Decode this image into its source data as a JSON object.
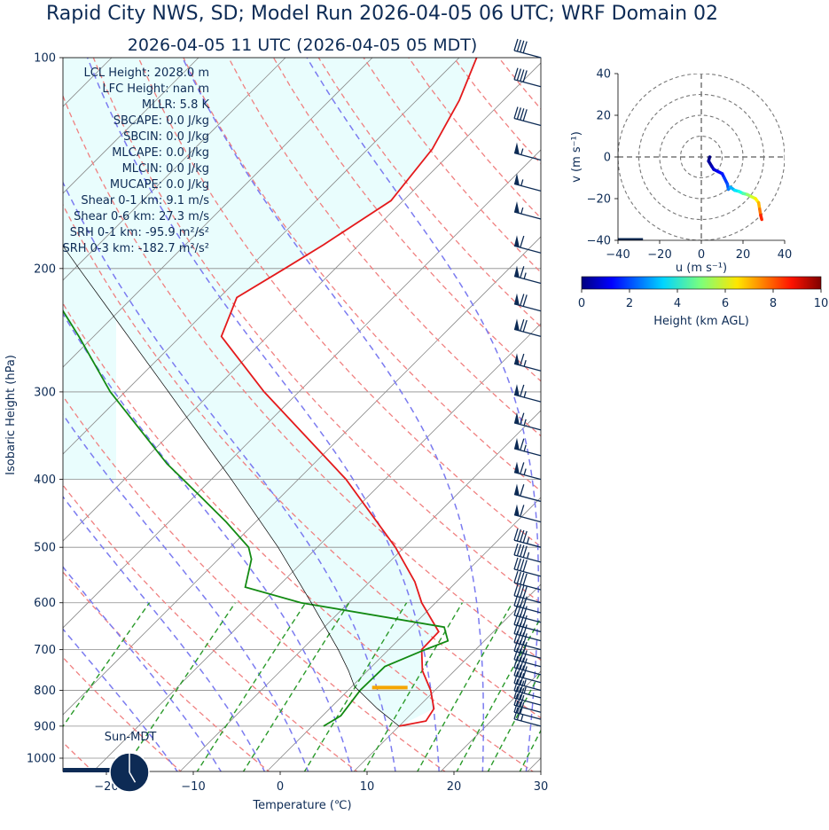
{
  "colors": {
    "title": "#0d2b55",
    "text": "#0d2b55",
    "temperature": "#e41a1c",
    "dewpoint": "#138a13",
    "parcel": "#000000",
    "cape_fill": "#e9fdfd",
    "dry_adiabat": "#f08080",
    "moist_adiabat": "#7b7bf0",
    "mixing_ratio": "#2a9a2a",
    "isotherm": "#8c8c8c",
    "lcl_marker": "#f5a500",
    "barb": "#0d2b55"
  },
  "title": {
    "main": "Rapid City NWS, SD; Model Run 2026-04-05 06 UTC; WRF Domain 02",
    "valid": "2026-04-05 11 UTC  (2026-04-05 05 MDT)"
  },
  "indices": [
    "LCL Height: 2028.0 m",
    "LFC Height: nan m",
    "MLLR: 5.8 K",
    "SBCAPE: 0.0 J/kg",
    "SBCIN: 0.0 J/kg",
    "MLCAPE: 0.0 J/kg",
    "MLCIN: 0.0 J/kg",
    "MUCAPE: 0.0 J/kg",
    "Shear 0-1 km: 9.1 m/s",
    "Shear 0-6 km: 27.3 m/s",
    "SRH 0-1 km: -95.9 m²/s²",
    "SRH 0-3 km: -182.7 m²/s²"
  ],
  "clock": {
    "label": "Sun-MDT",
    "hour": 5
  },
  "chart_data": [
    {
      "type": "skew-t",
      "xlabel": "Temperature (℃)",
      "ylabel": "Isobaric Height (hPa)",
      "xlim": [
        -25,
        30
      ],
      "ylim": [
        1050,
        100
      ],
      "xticks": [
        "−20",
        "−10",
        "0",
        "10",
        "20",
        "30"
      ],
      "xtick_values": [
        -20,
        -10,
        0,
        10,
        20,
        30
      ],
      "yticks": [
        "100",
        "200",
        "300",
        "400",
        "500",
        "600",
        "700",
        "800",
        "900",
        "1000"
      ],
      "ytick_values": [
        100,
        200,
        300,
        400,
        500,
        600,
        700,
        800,
        900,
        1000
      ],
      "series": [
        {
          "name": "temperature",
          "p": [
            900,
            885,
            850,
            800,
            750,
            700,
            660,
            600,
            560,
            500,
            400,
            300,
            250,
            220,
            200,
            185,
            160,
            135,
            115,
            100
          ],
          "t": [
            10,
            12.5,
            12,
            9.5,
            6.3,
            3.8,
            3.7,
            -1.6,
            -4.8,
            -11,
            -24.5,
            -44,
            -55.3,
            -58,
            -55.8,
            -54.1,
            -51.4,
            -52.6,
            -55.1,
            -58
          ]
        },
        {
          "name": "dewpoint",
          "p": [
            900,
            870,
            800,
            740,
            700,
            680,
            650,
            600,
            570,
            520,
            500,
            460,
            420,
            380,
            300,
            250,
            200,
            165,
            100
          ],
          "t": [
            1.3,
            2.1,
            1.4,
            1.5,
            4.2,
            5.8,
            3.8,
            -15.5,
            -23.7,
            -26.2,
            -27.9,
            -33.4,
            -39.8,
            -46.9,
            -61.7,
            -71.7,
            -84.4,
            -96.2,
            -117.6
          ]
        },
        {
          "name": "parcel",
          "p": [
            900,
            850,
            800,
            790,
            750,
            700,
            600,
            500,
            400,
            300,
            200,
            100
          ],
          "t": [
            10,
            5.5,
            1.2,
            0.3,
            -2.2,
            -5.8,
            -14.3,
            -24.5,
            -37.7,
            -55,
            -79.5,
            -121
          ]
        }
      ],
      "lcl": {
        "p": 793,
        "t": 4.5
      },
      "wind_barbs": [
        {
          "p": 900,
          "kt": 25
        },
        {
          "p": 880,
          "kt": 30
        },
        {
          "p": 860,
          "kt": 30
        },
        {
          "p": 840,
          "kt": 30
        },
        {
          "p": 820,
          "kt": 35
        },
        {
          "p": 800,
          "kt": 35
        },
        {
          "p": 780,
          "kt": 40
        },
        {
          "p": 760,
          "kt": 40
        },
        {
          "p": 740,
          "kt": 40
        },
        {
          "p": 720,
          "kt": 40
        },
        {
          "p": 700,
          "kt": 40
        },
        {
          "p": 680,
          "kt": 40
        },
        {
          "p": 660,
          "kt": 40
        },
        {
          "p": 640,
          "kt": 40
        },
        {
          "p": 620,
          "kt": 40
        },
        {
          "p": 600,
          "kt": 40
        },
        {
          "p": 575,
          "kt": 40
        },
        {
          "p": 550,
          "kt": 40
        },
        {
          "p": 525,
          "kt": 45
        },
        {
          "p": 500,
          "kt": 45
        },
        {
          "p": 460,
          "kt": 60
        },
        {
          "p": 430,
          "kt": 60
        },
        {
          "p": 400,
          "kt": 65
        },
        {
          "p": 370,
          "kt": 65
        },
        {
          "p": 340,
          "kt": 65
        },
        {
          "p": 310,
          "kt": 65
        },
        {
          "p": 280,
          "kt": 65
        },
        {
          "p": 250,
          "kt": 70
        },
        {
          "p": 230,
          "kt": 70
        },
        {
          "p": 210,
          "kt": 65
        },
        {
          "p": 190,
          "kt": 60
        },
        {
          "p": 170,
          "kt": 55
        },
        {
          "p": 155,
          "kt": 55
        },
        {
          "p": 140,
          "kt": 55
        },
        {
          "p": 125,
          "kt": 40
        },
        {
          "p": 110,
          "kt": 40
        },
        {
          "p": 100,
          "kt": 40
        }
      ]
    },
    {
      "type": "hodograph",
      "xlabel": "u (m s⁻¹)",
      "ylabel": "v (m s⁻¹)",
      "xlim": [
        -40,
        40
      ],
      "ylim": [
        -40,
        40
      ],
      "xticks": [
        "−40",
        "−20",
        "0",
        "20",
        "40"
      ],
      "xtick_values": [
        -40,
        -20,
        0,
        20,
        40
      ],
      "yticks": [
        "−40",
        "−20",
        "0",
        "20",
        "40"
      ],
      "ytick_values": [
        -40,
        -20,
        0,
        20,
        40
      ],
      "rings": [
        10,
        20,
        30,
        40
      ],
      "u": [
        4,
        3.5,
        5,
        6,
        8,
        10,
        11,
        12.5,
        13,
        14,
        16,
        18,
        20,
        22,
        24,
        26,
        27.5,
        28,
        28.5,
        29
      ],
      "v": [
        0,
        -2,
        -4.5,
        -6,
        -7,
        -8,
        -10,
        -13,
        -15.5,
        -14.5,
        -16,
        -16.5,
        -17.5,
        -18,
        -19,
        -20,
        -22,
        -25,
        -28,
        -30
      ],
      "height_km": [
        0,
        0.3,
        0.6,
        0.9,
        1.2,
        1.5,
        1.8,
        2.1,
        2.5,
        3.0,
        3.5,
        4.0,
        4.6,
        5.2,
        5.8,
        6.4,
        7.0,
        7.6,
        8.4,
        9.2
      ],
      "colorbar": {
        "label": "Height (km AGL)",
        "ticks": [
          "0",
          "2",
          "4",
          "6",
          "8",
          "10"
        ],
        "tick_values": [
          0,
          2,
          4,
          6,
          8,
          10
        ]
      }
    }
  ]
}
